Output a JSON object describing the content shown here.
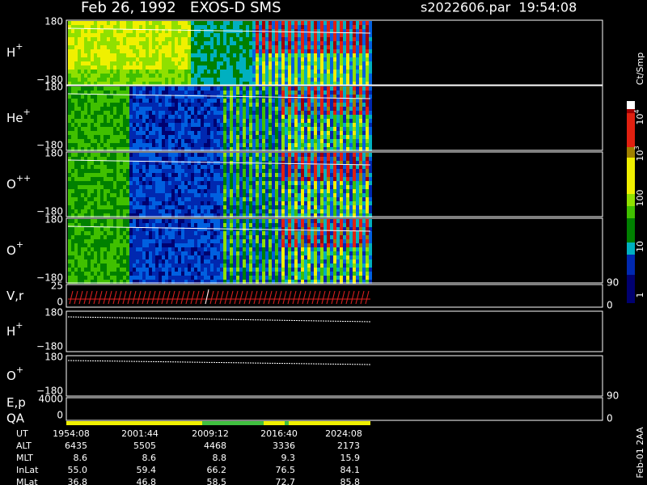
{
  "header": {
    "title": "Feb 26, 1992   EXOS-D SMS",
    "file": "s2022606.par  19:54:08"
  },
  "panels": [
    {
      "label": "H",
      "sup": "+",
      "top": "180",
      "bottom": "−180"
    },
    {
      "label": "He",
      "sup": "+",
      "top": "180",
      "bottom": "−180"
    },
    {
      "label": "O",
      "sup": "++",
      "top": "180",
      "bottom": "−180"
    },
    {
      "label": "O",
      "sup": "+",
      "top": "180",
      "bottom": "−180"
    },
    {
      "label": "V,r",
      "top": "25",
      "bottom": "0",
      "right_top": "90",
      "right_bottom": "0"
    },
    {
      "label": "H",
      "sup": "+",
      "top": "180",
      "bottom": "−180"
    },
    {
      "label": "O",
      "sup": "+",
      "top": "180",
      "bottom": "−180"
    },
    {
      "label": "E,p",
      "label2": "QA",
      "top": "4000",
      "bottom": "0",
      "right_top": "90",
      "right_bottom": "0"
    }
  ],
  "colorbar": {
    "unit": "Ct/Smp",
    "labels": [
      {
        "base": "10",
        "sup": "4"
      },
      {
        "base": "10",
        "sup": "3"
      },
      {
        "base": "100"
      },
      {
        "base": "10"
      },
      {
        "base": "1"
      }
    ]
  },
  "footer": [
    {
      "label": "UT",
      "values": [
        "1954:08",
        "2001:44",
        "2009:12",
        "2016:40",
        "2024:08"
      ]
    },
    {
      "label": "ALT",
      "values": [
        "6435",
        "5505",
        "4468",
        "3336",
        "2173"
      ]
    },
    {
      "label": "MLT",
      "values": [
        "8.6",
        "8.6",
        "8.8",
        "9.3",
        "15.9"
      ]
    },
    {
      "label": "InLat",
      "values": [
        "55.0",
        "59.4",
        "66.2",
        "76.5",
        "84.1"
      ]
    },
    {
      "label": "MLat",
      "values": [
        "36.8",
        "46.8",
        "58.5",
        "72.7",
        "85.8"
      ]
    }
  ],
  "stamp": "Feb-01 2AA"
}
